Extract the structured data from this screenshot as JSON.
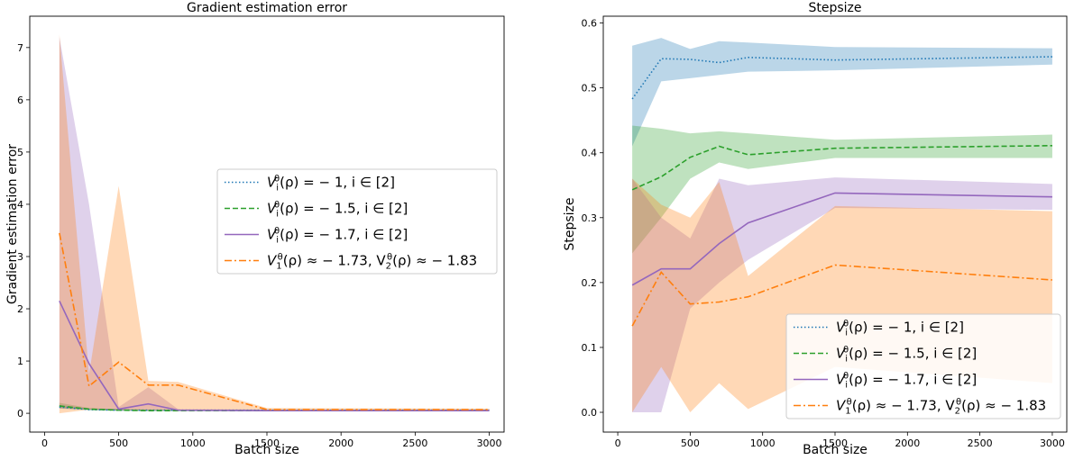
{
  "chart_data": [
    {
      "type": "line",
      "title": "Gradient estimation error",
      "xlabel": "Batch size",
      "ylabel": "Gradient estimation error",
      "xlim": [
        -100,
        3100
      ],
      "ylim": [
        -0.36,
        7.6
      ],
      "xticks": [
        0,
        500,
        1000,
        1500,
        2000,
        2500,
        3000
      ],
      "xtick_labels": [
        "0",
        "500",
        "1000",
        "1500",
        "2000",
        "2500",
        "3000"
      ],
      "yticks": [
        0,
        1,
        2,
        3,
        4,
        5,
        6,
        7
      ],
      "ytick_labels": [
        "0",
        "1",
        "2",
        "3",
        "4",
        "5",
        "6",
        "7"
      ],
      "grid": false,
      "legend_placement": "center-right",
      "x": [
        100,
        300,
        500,
        700,
        900,
        1500,
        3000
      ],
      "series": [
        {
          "name": "V_i^θ(ρ) = −1, i ∈ [2]",
          "legend_parts": [
            [
              "V",
              ""
            ],
            [
              "i",
              "sub"
            ],
            [
              "θ",
              "sup"
            ],
            [
              "(ρ) = − 1, i ∈ [2]",
              ""
            ]
          ],
          "color": "#1f77b4",
          "dash": "dotted",
          "values": [
            0.12,
            0.07,
            0.06,
            0.06,
            0.06,
            0.06,
            0.06
          ],
          "band_low": [
            0.09,
            0.06,
            0.05,
            0.05,
            0.05,
            0.05,
            0.05
          ],
          "band_high": [
            0.16,
            0.09,
            0.08,
            0.07,
            0.07,
            0.07,
            0.07
          ]
        },
        {
          "name": "V_i^θ(ρ) = −1.5, i ∈ [2]",
          "legend_parts": [
            [
              "V",
              ""
            ],
            [
              "i",
              "sub"
            ],
            [
              "θ",
              "sup"
            ],
            [
              "(ρ) = − 1.5, i ∈ [2]",
              ""
            ]
          ],
          "color": "#2ca02c",
          "dash": "dashed",
          "values": [
            0.14,
            0.08,
            0.06,
            0.05,
            0.05,
            0.05,
            0.05
          ],
          "band_low": [
            0.1,
            0.06,
            0.05,
            0.04,
            0.04,
            0.04,
            0.04
          ],
          "band_high": [
            0.2,
            0.1,
            0.08,
            0.07,
            0.06,
            0.06,
            0.06
          ]
        },
        {
          "name": "V_i^θ(ρ) = −1.7, i ∈ [2]",
          "legend_parts": [
            [
              "V",
              ""
            ],
            [
              "i",
              "sub"
            ],
            [
              "θ",
              "sup"
            ],
            [
              "(ρ) = − 1.7, i ∈ [2]",
              ""
            ]
          ],
          "color": "#9467bd",
          "dash": "solid",
          "values": [
            2.15,
            0.95,
            0.08,
            0.18,
            0.06,
            0.05,
            0.05
          ],
          "band_low": [
            0.1,
            0.07,
            0.05,
            0.05,
            0.04,
            0.04,
            0.04
          ],
          "band_high": [
            7.2,
            4.0,
            0.12,
            0.5,
            0.08,
            0.07,
            0.07
          ]
        },
        {
          "name": "V_1^θ(ρ) ≈ −1.73, V_2^θ(ρ) ≈ −1.83",
          "legend_parts": [
            [
              "V",
              ""
            ],
            [
              "1",
              "sub"
            ],
            [
              "θ",
              "sup"
            ],
            [
              "(ρ) ≈ − 1.73, V",
              ""
            ],
            [
              "2",
              "sub"
            ],
            [
              "θ",
              "sup"
            ],
            [
              "(ρ) ≈ − 1.83",
              ""
            ]
          ],
          "color": "#ff7f0e",
          "dash": "dashdot",
          "values": [
            3.45,
            0.52,
            0.98,
            0.54,
            0.54,
            0.07,
            0.07
          ],
          "band_low": [
            0.0,
            0.07,
            0.06,
            0.06,
            0.06,
            0.05,
            0.05
          ],
          "band_high": [
            7.25,
            0.75,
            4.35,
            0.62,
            0.6,
            0.1,
            0.09
          ]
        }
      ]
    },
    {
      "type": "line",
      "title": "Stepsize",
      "xlabel": "Batch size",
      "ylabel": "Stepsize",
      "xlim": [
        -100,
        3100
      ],
      "ylim": [
        -0.0305,
        0.6105
      ],
      "xticks": [
        0,
        500,
        1000,
        1500,
        2000,
        2500,
        3000
      ],
      "xtick_labels": [
        "0",
        "500",
        "1000",
        "1500",
        "2000",
        "2500",
        "3000"
      ],
      "yticks": [
        0.0,
        0.1,
        0.2,
        0.3,
        0.4,
        0.5,
        0.6
      ],
      "ytick_labels": [
        "0.0",
        "0.1",
        "0.2",
        "0.3",
        "0.4",
        "0.5",
        "0.6"
      ],
      "grid": false,
      "legend_placement": "lower-right",
      "x": [
        100,
        300,
        500,
        700,
        900,
        1500,
        3000
      ],
      "series": [
        {
          "name": "V_i^θ(ρ) = −1, i ∈ [2]",
          "legend_parts": [
            [
              "V",
              ""
            ],
            [
              "i",
              "sub"
            ],
            [
              "θ",
              "sup"
            ],
            [
              "(ρ) = − 1, i ∈ [2]",
              ""
            ]
          ],
          "color": "#1f77b4",
          "dash": "dotted",
          "values": [
            0.483,
            0.545,
            0.544,
            0.539,
            0.547,
            0.543,
            0.548
          ],
          "band_low": [
            0.41,
            0.51,
            0.515,
            0.52,
            0.525,
            0.527,
            0.536
          ],
          "band_high": [
            0.565,
            0.577,
            0.56,
            0.572,
            0.57,
            0.563,
            0.561
          ]
        },
        {
          "name": "V_i^θ(ρ) = −1.5, i ∈ [2]",
          "legend_parts": [
            [
              "V",
              ""
            ],
            [
              "i",
              "sub"
            ],
            [
              "θ",
              "sup"
            ],
            [
              "(ρ) = − 1.5, i ∈ [2]",
              ""
            ]
          ],
          "color": "#2ca02c",
          "dash": "dashed",
          "values": [
            0.343,
            0.363,
            0.393,
            0.41,
            0.397,
            0.407,
            0.411
          ],
          "band_low": [
            0.245,
            0.3,
            0.36,
            0.385,
            0.375,
            0.392,
            0.392
          ],
          "band_high": [
            0.442,
            0.437,
            0.43,
            0.433,
            0.43,
            0.42,
            0.428
          ]
        },
        {
          "name": "V_i^θ(ρ) = −1.7, i ∈ [2]",
          "legend_parts": [
            [
              "V",
              ""
            ],
            [
              "i",
              "sub"
            ],
            [
              "θ",
              "sup"
            ],
            [
              "(ρ) = − 1.7, i ∈ [2]",
              ""
            ]
          ],
          "color": "#9467bd",
          "dash": "solid",
          "values": [
            0.196,
            0.221,
            0.221,
            0.26,
            0.292,
            0.338,
            0.332
          ],
          "band_low": [
            0.0,
            0.0,
            0.16,
            0.2,
            0.235,
            0.315,
            0.312
          ],
          "band_high": [
            0.36,
            0.3,
            0.268,
            0.36,
            0.35,
            0.362,
            0.352
          ]
        },
        {
          "name": "V_1^θ(ρ) ≈ −1.73, V_2^θ(ρ) ≈ −1.83",
          "legend_parts": [
            [
              "V",
              ""
            ],
            [
              "1",
              "sub"
            ],
            [
              "θ",
              "sup"
            ],
            [
              "(ρ) ≈ − 1.73, V",
              ""
            ],
            [
              "2",
              "sub"
            ],
            [
              "θ",
              "sup"
            ],
            [
              "(ρ) ≈ − 1.83",
              ""
            ]
          ],
          "color": "#ff7f0e",
          "dash": "dashdot",
          "values": [
            0.133,
            0.216,
            0.167,
            0.17,
            0.178,
            0.227,
            0.204
          ],
          "band_low": [
            0.0,
            0.07,
            0.0,
            0.045,
            0.005,
            0.07,
            0.045
          ],
          "band_high": [
            0.36,
            0.32,
            0.3,
            0.355,
            0.21,
            0.318,
            0.31
          ]
        }
      ]
    }
  ]
}
